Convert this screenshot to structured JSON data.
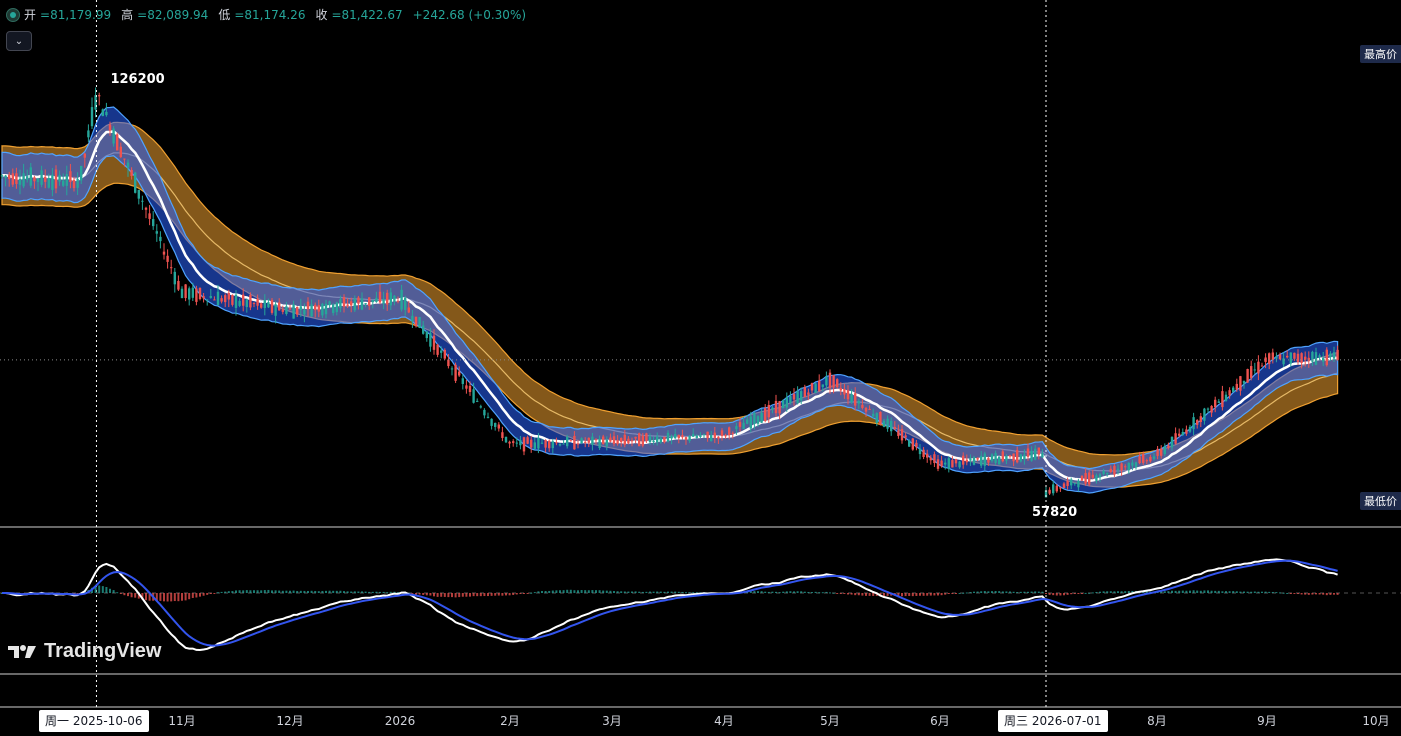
{
  "ohlc": {
    "open_label": "开",
    "open": "=81,179.99",
    "high_label": "高",
    "high": "=82,089.94",
    "low_label": "低",
    "low": "=81,174.26",
    "close_label": "收",
    "close": "=81,422.67",
    "change": "+242.68 (+0.30%)"
  },
  "labels": {
    "high_tag": "最高价",
    "low_tag": "最低价",
    "logo": "TradingView"
  },
  "crosshair": {
    "left_date": "周一 2025-10-06",
    "right_date": "周三 2026-07-01"
  },
  "colors": {
    "up": "#26a69a",
    "down": "#ef5350",
    "blue_band": "#2962ff",
    "orange_band": "#f0a030",
    "macd_line": "#ffffff",
    "signal_line": "#3355ee"
  },
  "chart_data": {
    "type": "candlestick",
    "title": "",
    "x_ticks": [
      "11月",
      "12月",
      "2026",
      "2月",
      "3月",
      "4月",
      "5月",
      "6月",
      "7月",
      "8月",
      "9月",
      "10月"
    ],
    "annotations": [
      {
        "label": "126200",
        "x": "2025-10-06",
        "y": 126200
      },
      {
        "label": "57820",
        "x": "2026-07-01",
        "y": 57820
      }
    ],
    "ylim": [
      53000,
      138000
    ],
    "monthly_close": [
      {
        "x": "2025-10",
        "close": 111000
      },
      {
        "x": "2025-11",
        "close": 92000
      },
      {
        "x": "2025-12",
        "close": 89000
      },
      {
        "x": "2026-01",
        "close": 91000
      },
      {
        "x": "2026-02",
        "close": 66000
      },
      {
        "x": "2026-03",
        "close": 66500
      },
      {
        "x": "2026-04",
        "close": 67500
      },
      {
        "x": "2026-05",
        "close": 77000
      },
      {
        "x": "2026-06",
        "close": 62500
      },
      {
        "x": "2026-07",
        "close": 64500
      },
      {
        "x": "2026-08",
        "close": 64000
      },
      {
        "x": "2026-09",
        "close": 80500
      },
      {
        "x": "2026-10",
        "close": 81422.67
      }
    ],
    "series": [
      {
        "type": "band",
        "color": "#2962ff"
      },
      {
        "type": "band",
        "color": "#f0a030"
      }
    ],
    "indicator": {
      "type": "macd",
      "series": [
        {
          "color": "#ffffff"
        },
        {
          "color": "#3355ee"
        }
      ]
    }
  }
}
